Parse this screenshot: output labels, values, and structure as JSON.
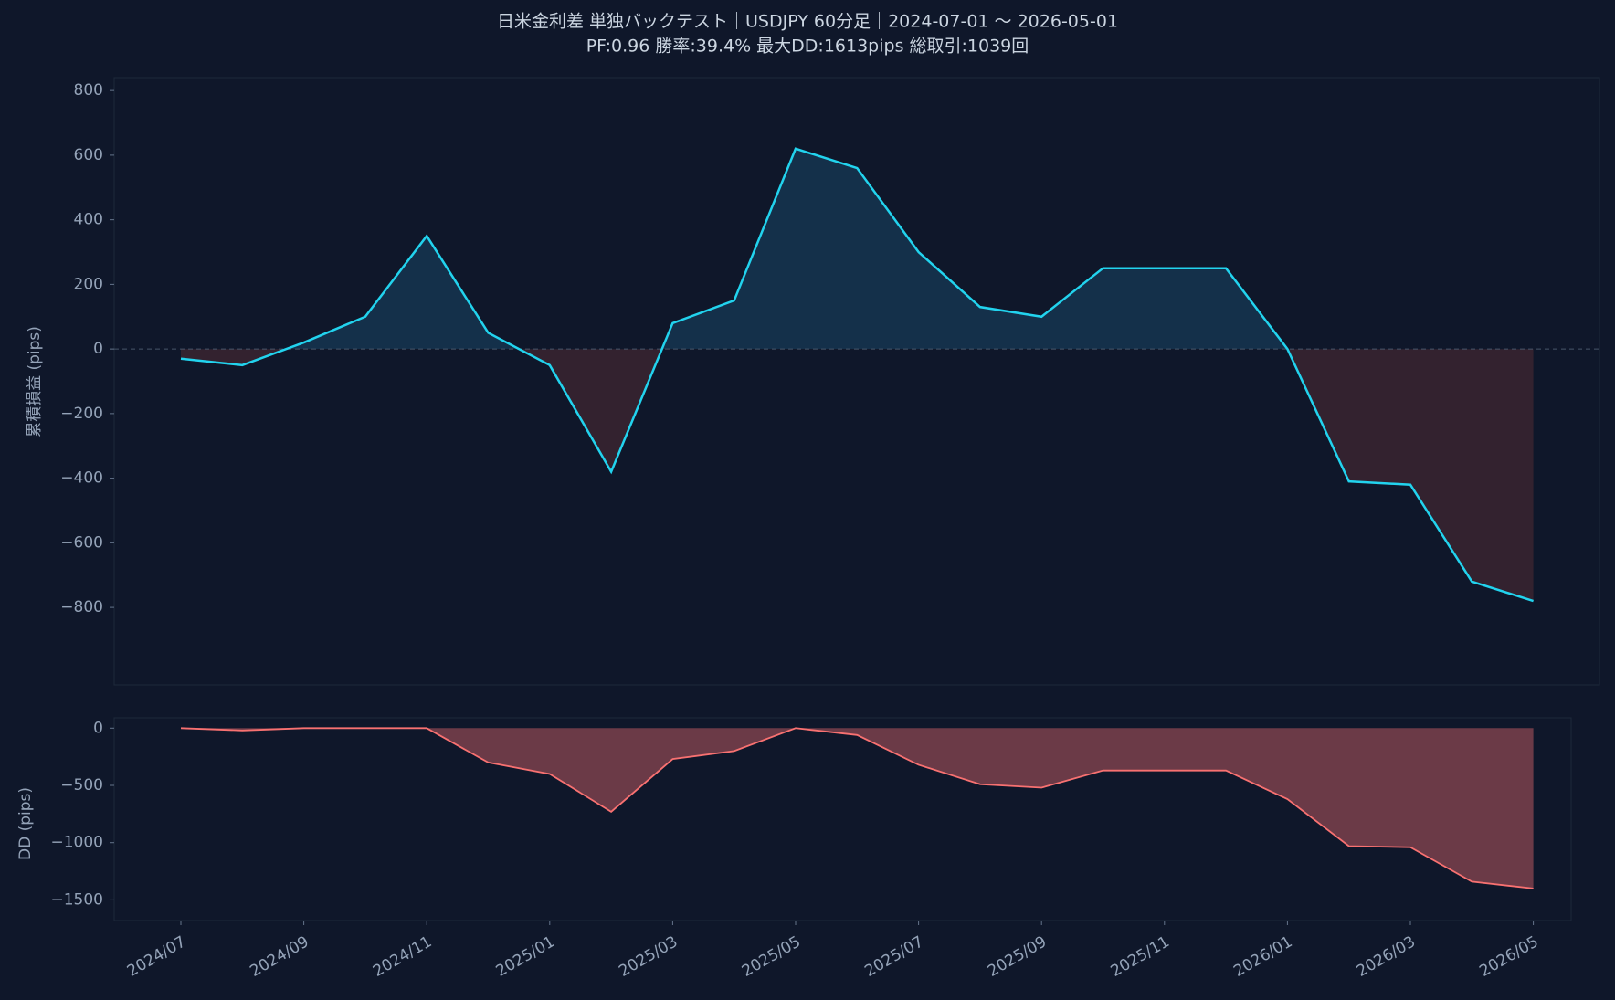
{
  "chart_data": [
    {
      "type": "line",
      "title": "日米金利差 単独バックテスト｜USDJPY 60分足｜2024-07-01 〜 2026-05-01",
      "subtitle": "PF:0.96  勝率:39.4%  最大DD:1613pips  総取引:1039回",
      "y_label": "累積損益 (pips)",
      "series": [
        {
          "name": "累積損益",
          "color": "#22d3ee",
          "values": [
            -30,
            -50,
            20,
            100,
            350,
            50,
            -50,
            -380,
            80,
            150,
            620,
            560,
            300,
            130,
            100,
            250,
            250,
            250,
            0,
            -410,
            -420,
            -720,
            -780
          ]
        }
      ],
      "ylim": [
        -1040,
        840
      ],
      "yticks": [
        {
          "value": -800,
          "label": "−800"
        },
        {
          "value": -600,
          "label": "−600"
        },
        {
          "value": -400,
          "label": "−400"
        },
        {
          "value": -200,
          "label": "−200"
        },
        0,
        200,
        400,
        600,
        800
      ],
      "zero_line": true,
      "positive_fill": "#14304a",
      "negative_fill": "#33222f"
    },
    {
      "type": "area",
      "y_label": "DD (pips)",
      "x": [
        "2024/07",
        "2024/08",
        "2024/09",
        "2024/10",
        "2024/11",
        "2024/12",
        "2025/01",
        "2025/02",
        "2025/03",
        "2025/04",
        "2025/05",
        "2025/06",
        "2025/07",
        "2025/08",
        "2025/09",
        "2025/10",
        "2025/11",
        "2025/12",
        "2026/01",
        "2026/02",
        "2026/03",
        "2026/04",
        "2026/05"
      ],
      "xticks": [
        "2024/07",
        "2024/09",
        "2024/11",
        "2025/01",
        "2025/03",
        "2025/05",
        "2025/07",
        "2025/09",
        "2025/11",
        "2026/01",
        "2026/03",
        "2026/05"
      ],
      "series": [
        {
          "name": "DD",
          "color": "#f87171",
          "values": [
            0,
            -20,
            0,
            0,
            0,
            -300,
            -400,
            -730,
            -270,
            -200,
            0,
            -60,
            -320,
            -490,
            -520,
            -370,
            -370,
            -370,
            -620,
            -1030,
            -1040,
            -1340,
            -1400
          ]
        }
      ],
      "fill": "#6b3a47",
      "ylim": [
        -1680,
        90
      ],
      "yticks": [
        {
          "value": -1500,
          "label": "−1500"
        },
        {
          "value": -1000,
          "label": "−1000"
        },
        {
          "value": -500,
          "label": "−500"
        },
        0
      ]
    }
  ]
}
